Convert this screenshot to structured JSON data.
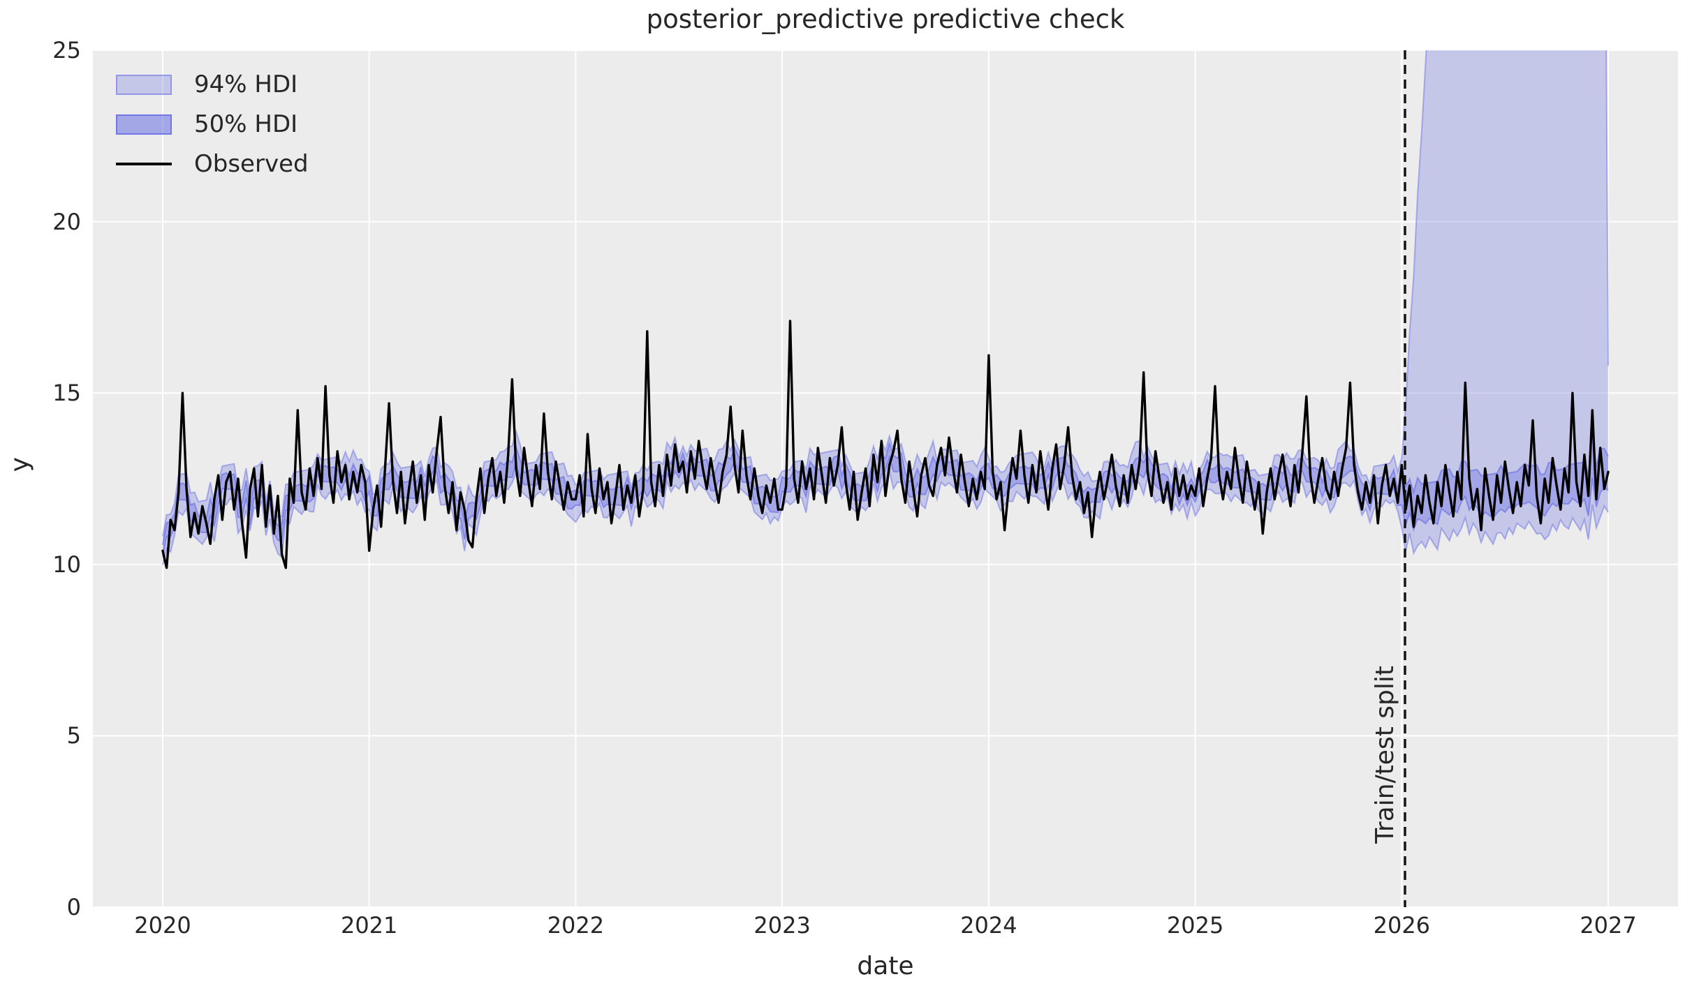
{
  "chart_data": {
    "type": "line",
    "title": "posterior_predictive predictive check",
    "xlabel": "date",
    "ylabel": "y",
    "x_range": [
      2019.662,
      2027.338
    ],
    "y_range": [
      0,
      25
    ],
    "xticks": [
      2020,
      2021,
      2022,
      2023,
      2024,
      2025,
      2026,
      2027
    ],
    "yticks": [
      0,
      5,
      10,
      15,
      20,
      25
    ],
    "grid": true,
    "legend": {
      "location": "upper left",
      "items": [
        {
          "label": "94% HDI",
          "type": "patch"
        },
        {
          "label": "50% HDI",
          "type": "patch"
        },
        {
          "label": "Observed",
          "type": "line"
        }
      ]
    },
    "split": {
      "label": "Train/test split",
      "line_x": 2026.016,
      "test_start_x": 2026.0
    },
    "observed": {
      "start_year": 2020,
      "points_per_year": 52,
      "values": [
        10.4,
        9.9,
        11.3,
        11.0,
        12.1,
        15.0,
        12.2,
        10.8,
        11.5,
        10.9,
        11.7,
        11.2,
        10.6,
        11.9,
        12.6,
        11.3,
        12.4,
        12.7,
        11.6,
        12.5,
        11.2,
        10.2,
        12.2,
        12.8,
        11.4,
        12.9,
        11.1,
        12.3,
        10.9,
        12.0,
        10.3,
        9.9,
        12.5,
        11.8,
        14.5,
        12.1,
        11.6,
        12.8,
        12.0,
        13.1,
        12.2,
        15.2,
        12.6,
        11.8,
        13.3,
        12.4,
        12.9,
        11.9,
        12.7,
        12.1,
        12.9,
        12.4,
        10.4,
        11.6,
        12.3,
        11.1,
        12.8,
        14.7,
        12.4,
        11.5,
        12.7,
        11.2,
        12.2,
        13.0,
        11.8,
        12.6,
        11.3,
        12.9,
        12.1,
        13.3,
        14.3,
        12.3,
        11.5,
        12.4,
        11.0,
        12.1,
        11.6,
        10.7,
        10.5,
        11.9,
        12.8,
        11.5,
        12.5,
        13.1,
        12.0,
        12.7,
        11.8,
        13.2,
        15.4,
        12.8,
        12.0,
        13.4,
        12.5,
        11.7,
        12.9,
        12.2,
        14.4,
        12.7,
        11.9,
        13.0,
        12.3,
        11.6,
        12.4,
        11.9,
        11.9,
        12.6,
        11.4,
        13.8,
        12.2,
        11.5,
        12.8,
        11.9,
        12.4,
        11.2,
        12.0,
        12.9,
        11.6,
        12.3,
        11.8,
        12.6,
        11.4,
        12.2,
        16.8,
        12.4,
        11.7,
        12.9,
        12.0,
        13.2,
        12.3,
        13.5,
        12.7,
        13.0,
        12.1,
        13.3,
        12.5,
        13.6,
        12.8,
        12.2,
        13.1,
        12.4,
        11.8,
        12.7,
        13.2,
        14.6,
        12.9,
        12.1,
        13.9,
        12.6,
        11.9,
        12.8,
        12.0,
        11.5,
        12.3,
        11.8,
        12.5,
        11.6,
        11.6,
        12.3,
        17.1,
        12.5,
        11.8,
        13.0,
        12.2,
        12.8,
        11.9,
        13.4,
        12.6,
        11.8,
        13.1,
        12.3,
        12.9,
        14.0,
        12.4,
        11.6,
        12.7,
        11.3,
        12.1,
        12.8,
        11.7,
        13.2,
        12.4,
        13.6,
        12.0,
        12.9,
        13.3,
        13.9,
        12.5,
        11.8,
        13.0,
        12.2,
        11.4,
        12.6,
        13.1,
        12.3,
        12.0,
        12.9,
        13.4,
        12.6,
        13.7,
        12.8,
        12.1,
        13.2,
        12.4,
        11.7,
        12.5,
        11.9,
        12.7,
        12.2,
        16.1,
        12.7,
        11.9,
        12.4,
        11.0,
        12.2,
        13.1,
        12.5,
        13.9,
        12.6,
        11.8,
        12.9,
        12.1,
        13.3,
        12.4,
        11.6,
        12.8,
        13.5,
        12.2,
        12.9,
        14.0,
        12.6,
        11.9,
        12.4,
        11.5,
        12.1,
        10.8,
        12.0,
        12.7,
        11.9,
        12.5,
        13.2,
        12.3,
        11.7,
        12.6,
        11.8,
        12.9,
        12.2,
        13.0,
        15.6,
        12.7,
        12.0,
        13.3,
        12.5,
        11.8,
        12.4,
        11.6,
        12.8,
        12.0,
        12.6,
        11.9,
        12.3,
        12.0,
        12.8,
        11.7,
        12.5,
        13.1,
        15.2,
        12.6,
        11.9,
        12.7,
        12.2,
        13.4,
        12.5,
        11.8,
        13.0,
        12.3,
        11.6,
        12.4,
        10.9,
        12.1,
        12.8,
        11.9,
        12.6,
        13.2,
        12.4,
        11.7,
        12.9,
        12.1,
        13.3,
        14.9,
        12.6,
        11.8,
        12.5,
        13.1,
        12.2,
        11.9,
        12.7,
        12.0,
        12.8,
        13.4,
        15.3,
        12.9,
        12.1,
        11.6,
        12.4,
        11.8,
        12.6,
        11.2,
        12.3,
        12.9,
        12.0,
        12.5,
        11.8,
        12.9,
        11.6,
        12.3,
        11.1,
        12.0,
        11.5,
        12.6,
        11.8,
        11.2,
        12.4,
        11.7,
        12.9,
        12.1,
        11.4,
        12.7,
        11.9,
        15.3,
        12.5,
        11.6,
        12.2,
        11.0,
        12.8,
        12.0,
        11.3,
        12.6,
        11.8,
        13.0,
        12.2,
        11.5,
        12.4,
        11.7,
        12.9,
        12.3,
        14.2,
        12.0,
        11.2,
        12.5,
        11.8,
        13.1,
        12.3,
        11.6,
        12.8,
        12.1,
        15.0,
        12.4,
        11.7,
        13.2,
        12.0,
        14.5,
        11.9,
        13.4,
        12.2,
        12.7
      ]
    },
    "bands": {
      "hdi_probs": [
        0.94,
        0.5
      ],
      "fill94_opacity": 0.3,
      "fill50_opacity": 0.38,
      "edge94_opacity": 0.5,
      "edge50_opacity": 0.65,
      "train94_base": 0.42,
      "train94_jitter": 0.3,
      "train50_base": 0.17,
      "train50_jitter": 0.12,
      "test50_base": 0.45,
      "test50_jitter": 0.25,
      "test94_lower_base": 1.0,
      "test94_lower_jitter": 0.5,
      "test94_start_offset": 0.8,
      "test94_growth_per_week": 2.0,
      "test94_cap": 34,
      "test94_end": 15.8
    },
    "colors": {
      "figure_background": "#ffffff",
      "axes_background": "#ececec",
      "grid": "#ffffff",
      "text": "#262626",
      "observed_line": "#000000",
      "hdi": "#6a6fe2",
      "split_line": "#111111"
    }
  }
}
